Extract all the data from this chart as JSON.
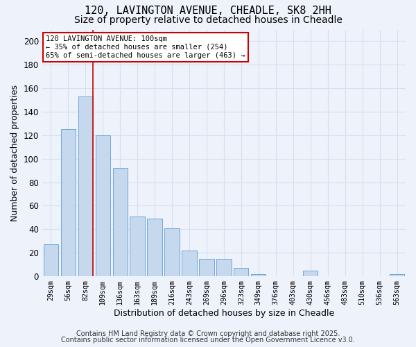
{
  "title1": "120, LAVINGTON AVENUE, CHEADLE, SK8 2HH",
  "title2": "Size of property relative to detached houses in Cheadle",
  "xlabel": "Distribution of detached houses by size in Cheadle",
  "ylabel": "Number of detached properties",
  "categories": [
    "29sqm",
    "56sqm",
    "82sqm",
    "109sqm",
    "136sqm",
    "163sqm",
    "189sqm",
    "216sqm",
    "243sqm",
    "269sqm",
    "296sqm",
    "323sqm",
    "349sqm",
    "376sqm",
    "403sqm",
    "430sqm",
    "456sqm",
    "483sqm",
    "510sqm",
    "536sqm",
    "563sqm"
  ],
  "values": [
    27,
    125,
    153,
    120,
    92,
    51,
    49,
    41,
    22,
    15,
    15,
    7,
    2,
    0,
    0,
    5,
    0,
    0,
    0,
    0,
    2
  ],
  "bar_color": "#c5d8ee",
  "bar_edge_color": "#6ea8d8",
  "vline_color": "#cc0000",
  "annotation_text": "120 LAVINGTON AVENUE: 100sqm\n← 35% of detached houses are smaller (254)\n65% of semi-detached houses are larger (463) →",
  "annotation_box_color": "#ffffff",
  "annotation_box_edge": "#cc0000",
  "ylim": [
    0,
    210
  ],
  "yticks": [
    0,
    20,
    40,
    60,
    80,
    100,
    120,
    140,
    160,
    180,
    200
  ],
  "footer1": "Contains HM Land Registry data © Crown copyright and database right 2025.",
  "footer2": "Contains public sector information licensed under the Open Government Licence v3.0.",
  "bg_color": "#eef2fb",
  "grid_color": "#d8dff0",
  "title_fontsize": 11,
  "subtitle_fontsize": 10,
  "annotation_fontsize": 7.5,
  "xlabel_fontsize": 9,
  "ylabel_fontsize": 9,
  "footer_fontsize": 7
}
